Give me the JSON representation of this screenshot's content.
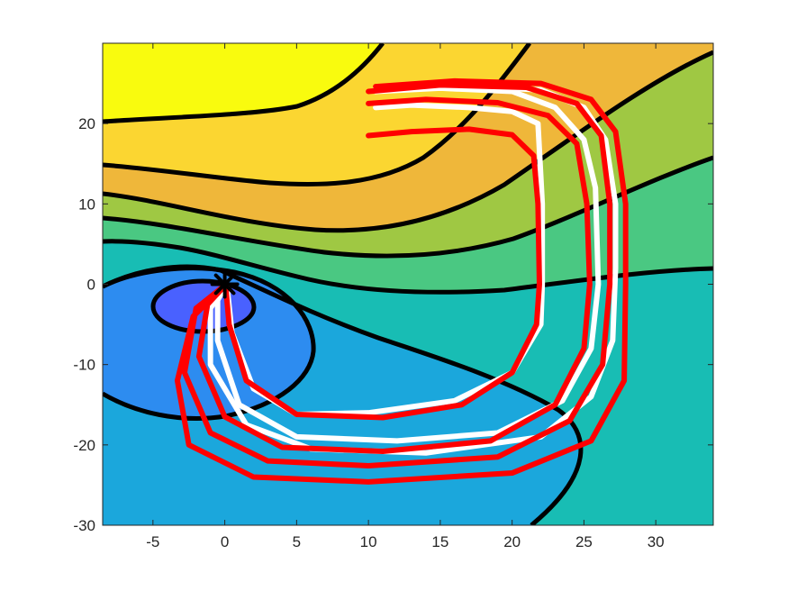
{
  "chart_data": {
    "type": "contour",
    "title": "",
    "xlabel": "",
    "ylabel": "",
    "xlim": [
      -8.5,
      34
    ],
    "ylim": [
      -30,
      30
    ],
    "x_ticks": [
      -5,
      0,
      5,
      10,
      15,
      20,
      25,
      30
    ],
    "y_ticks": [
      -30,
      -20,
      -10,
      0,
      10,
      20
    ],
    "x_tick_labels": [
      "-5",
      "0",
      "5",
      "10",
      "15",
      "20",
      "25",
      "30"
    ],
    "y_tick_labels": [
      "-30",
      "-20",
      "-10",
      "0",
      "10",
      "20"
    ],
    "grid": false,
    "legend": "none",
    "filled_regions": [
      {
        "level": 1,
        "color": "#f9fb0e"
      },
      {
        "level": 2,
        "color": "#fbd631"
      },
      {
        "level": 3,
        "color": "#efb73a"
      },
      {
        "level": 4,
        "color": "#9fc843"
      },
      {
        "level": 5,
        "color": "#4ac882"
      },
      {
        "level": 6,
        "color": "#18bdb4"
      },
      {
        "level": 7,
        "color": "#1ba7dc"
      },
      {
        "level": 8,
        "color": "#2d8cf0"
      },
      {
        "level": 9,
        "color": "#4961ff"
      }
    ],
    "contour_line_color": "#000000",
    "source_marker": {
      "x": 0,
      "y": 0,
      "symbol": "*",
      "color": "#000000"
    },
    "trajectories": [
      {
        "color": "#ffffff",
        "points": [
          [
            10.5,
            22
          ],
          [
            13,
            22.3
          ],
          [
            17,
            22
          ],
          [
            20,
            21.5
          ],
          [
            21.8,
            20
          ],
          [
            22.1,
            10
          ],
          [
            22.1,
            0
          ],
          [
            22,
            -5
          ],
          [
            20,
            -11
          ],
          [
            16,
            -14.5
          ],
          [
            10,
            -16
          ],
          [
            5,
            -16.2
          ],
          [
            2,
            -13
          ],
          [
            0.5,
            -6
          ],
          [
            0.2,
            -1
          ],
          [
            0.1,
            0
          ]
        ]
      },
      {
        "color": "#ffffff",
        "points": [
          [
            10.5,
            24
          ],
          [
            15,
            24.4
          ],
          [
            20,
            24
          ],
          [
            23,
            22
          ],
          [
            25,
            18
          ],
          [
            25.8,
            12
          ],
          [
            26,
            0
          ],
          [
            25.5,
            -8
          ],
          [
            23.5,
            -14.5
          ],
          [
            19,
            -18.5
          ],
          [
            12,
            -19.5
          ],
          [
            5,
            -19
          ],
          [
            1,
            -15
          ],
          [
            -0.5,
            -7
          ],
          [
            -0.5,
            -2
          ],
          [
            0.1,
            0
          ]
        ]
      },
      {
        "color": "#ffffff",
        "points": [
          [
            10.5,
            24.5
          ],
          [
            16,
            24.7
          ],
          [
            22,
            24.2
          ],
          [
            25,
            22
          ],
          [
            26.5,
            18
          ],
          [
            27.2,
            10
          ],
          [
            27.2,
            2
          ],
          [
            27,
            -7
          ],
          [
            25.5,
            -14
          ],
          [
            22,
            -19
          ],
          [
            14,
            -21
          ],
          [
            6,
            -20.5
          ],
          [
            1.5,
            -17.5
          ],
          [
            -1,
            -10
          ],
          [
            -1,
            -3
          ],
          [
            0.1,
            0
          ]
        ]
      },
      {
        "color": "#ff0000",
        "points": [
          [
            10,
            18.5
          ],
          [
            13,
            19
          ],
          [
            17,
            19.3
          ],
          [
            20,
            18.6
          ],
          [
            21.5,
            16
          ],
          [
            21.8,
            10
          ],
          [
            21.9,
            0
          ],
          [
            21.7,
            -5
          ],
          [
            20,
            -11
          ],
          [
            16.5,
            -15
          ],
          [
            11,
            -16.6
          ],
          [
            5,
            -16.2
          ],
          [
            1.5,
            -12
          ],
          [
            0.3,
            -5
          ],
          [
            0.1,
            -1
          ],
          [
            0.1,
            0
          ]
        ]
      },
      {
        "color": "#ff0000",
        "points": [
          [
            10,
            22.5
          ],
          [
            14,
            23
          ],
          [
            19,
            22.6
          ],
          [
            22.5,
            21
          ],
          [
            24.5,
            17.5
          ],
          [
            25.2,
            10
          ],
          [
            25.4,
            0
          ],
          [
            25,
            -8
          ],
          [
            23,
            -15
          ],
          [
            18.5,
            -19.5
          ],
          [
            11,
            -20.8
          ],
          [
            4,
            -20.3
          ],
          [
            0,
            -16.5
          ],
          [
            -1.8,
            -9
          ],
          [
            -1.2,
            -2.5
          ],
          [
            0.1,
            0
          ]
        ]
      },
      {
        "color": "#ff0000",
        "points": [
          [
            10,
            24
          ],
          [
            15,
            24.8
          ],
          [
            21,
            24.5
          ],
          [
            24.5,
            22.5
          ],
          [
            26.2,
            18.5
          ],
          [
            26.8,
            10
          ],
          [
            26.8,
            0
          ],
          [
            26.3,
            -10
          ],
          [
            24,
            -17
          ],
          [
            19,
            -21.5
          ],
          [
            10,
            -22.6
          ],
          [
            3,
            -22
          ],
          [
            -1,
            -18.5
          ],
          [
            -2.8,
            -11
          ],
          [
            -2,
            -3
          ],
          [
            0.1,
            0
          ]
        ]
      },
      {
        "color": "#ff0000",
        "points": [
          [
            10.5,
            24.6
          ],
          [
            16,
            25.3
          ],
          [
            22,
            25
          ],
          [
            25.5,
            23
          ],
          [
            27.2,
            19
          ],
          [
            27.9,
            10
          ],
          [
            27.9,
            0
          ],
          [
            27.8,
            -12
          ],
          [
            25.5,
            -19.5
          ],
          [
            20,
            -23.5
          ],
          [
            10,
            -24.6
          ],
          [
            2,
            -24
          ],
          [
            -2.5,
            -20
          ],
          [
            -3.3,
            -12
          ],
          [
            -2.2,
            -4
          ],
          [
            0.1,
            0
          ]
        ]
      }
    ]
  }
}
